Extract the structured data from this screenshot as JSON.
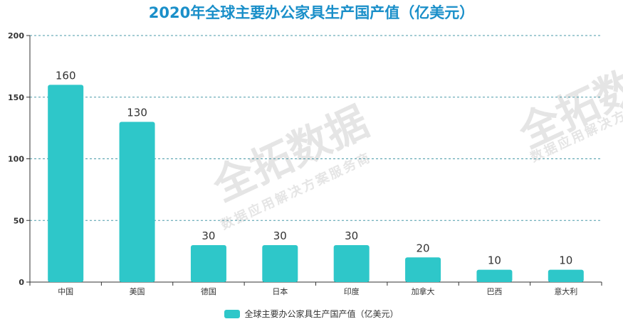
{
  "chart_data": {
    "type": "bar",
    "title": "2020年全球主要办公家具生产国产值（亿美元）",
    "categories": [
      "中国",
      "美国",
      "德国",
      "日本",
      "印度",
      "加拿大",
      "巴西",
      "意大利"
    ],
    "series": [
      {
        "name": "全球主要办公家具生产国产值（亿美元）",
        "values": [
          160,
          130,
          30,
          30,
          30,
          20,
          10,
          10
        ]
      }
    ],
    "ylim": [
      0,
      200
    ],
    "yticks": [
      0,
      50,
      100,
      150,
      200
    ],
    "grid": true,
    "legend_position": "bottom",
    "colors": {
      "bar": "#2ec7c9",
      "title": "#1a8fc9",
      "grid": "#4a9aa8"
    }
  },
  "watermark": {
    "brand": "全拓数据",
    "tagline": "数据应用解决方案服务商"
  }
}
